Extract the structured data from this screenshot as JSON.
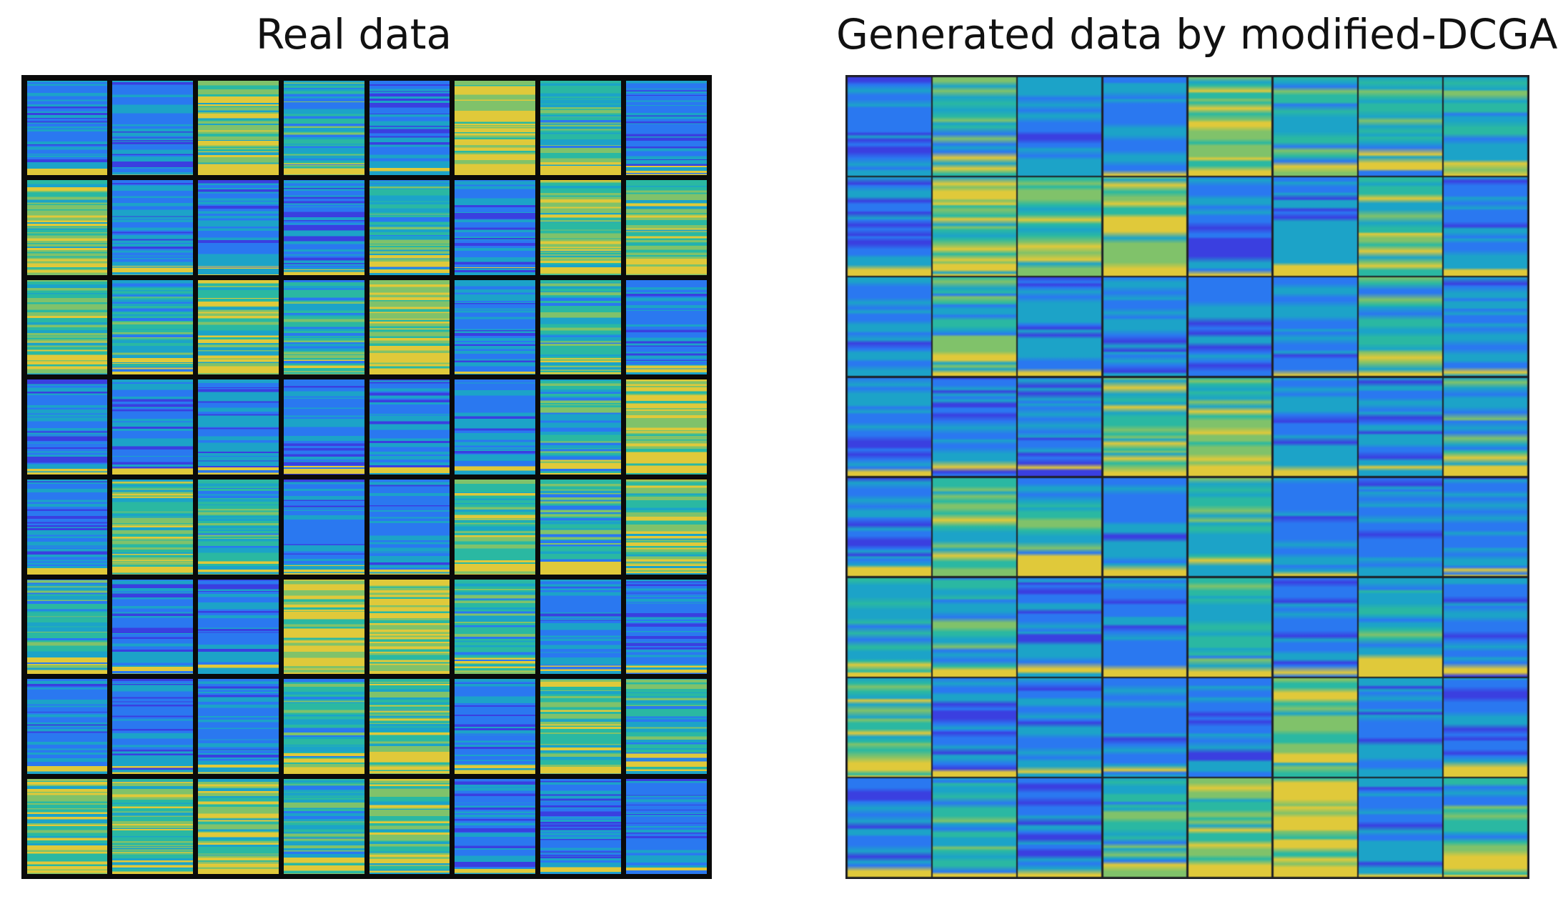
{
  "panels": [
    {
      "id": "real",
      "title": "Real data",
      "rows": 8,
      "cols": 8,
      "tile_colors": [
        [
          "blue",
          "blue",
          "green",
          "teal",
          "blue",
          "yellow",
          "teal",
          "blue"
        ],
        [
          "green",
          "blue",
          "blue",
          "blue",
          "teal",
          "blue",
          "green",
          "green"
        ],
        [
          "green",
          "teal",
          "green",
          "teal",
          "yellow",
          "blue",
          "teal",
          "blue"
        ],
        [
          "blue",
          "blue",
          "blue",
          "blue",
          "blue",
          "blue",
          "teal",
          "yellow"
        ],
        [
          "blue",
          "green",
          "teal",
          "blue",
          "blue",
          "green",
          "teal",
          "green"
        ],
        [
          "teal",
          "blue",
          "blue",
          "yellow",
          "yellow",
          "teal",
          "blue",
          "blue"
        ],
        [
          "blue",
          "blue",
          "blue",
          "teal",
          "green",
          "blue",
          "green",
          "teal"
        ],
        [
          "green",
          "green",
          "green",
          "teal",
          "green",
          "blue",
          "blue",
          "blue"
        ]
      ]
    },
    {
      "id": "generated",
      "title": "Generated data by modified-DCGAN",
      "rows": 8,
      "cols": 8,
      "tile_colors": [
        [
          "blue",
          "teal",
          "blue",
          "blue",
          "green",
          "teal",
          "teal",
          "teal"
        ],
        [
          "blue",
          "green",
          "green",
          "green",
          "blue",
          "blue",
          "green",
          "blue"
        ],
        [
          "blue",
          "teal",
          "blue",
          "blue",
          "blue",
          "blue",
          "teal",
          "blue"
        ],
        [
          "blue",
          "blue",
          "blue",
          "green",
          "green",
          "blue",
          "blue",
          "teal"
        ],
        [
          "blue",
          "green",
          "teal",
          "blue",
          "teal",
          "blue",
          "blue",
          "blue"
        ],
        [
          "teal",
          "teal",
          "blue",
          "blue",
          "teal",
          "blue",
          "teal",
          "blue"
        ],
        [
          "green",
          "blue",
          "blue",
          "blue",
          "blue",
          "green",
          "blue",
          "blue"
        ],
        [
          "blue",
          "teal",
          "blue",
          "teal",
          "green",
          "yellow",
          "blue",
          "teal"
        ]
      ]
    }
  ],
  "palette": {
    "deep_blue": "#3a3fe0",
    "blue": "#2a78f0",
    "cyan": "#1ca3c8",
    "teal": "#2ab8a2",
    "green": "#80c26a",
    "yellow": "#e0c93a"
  }
}
